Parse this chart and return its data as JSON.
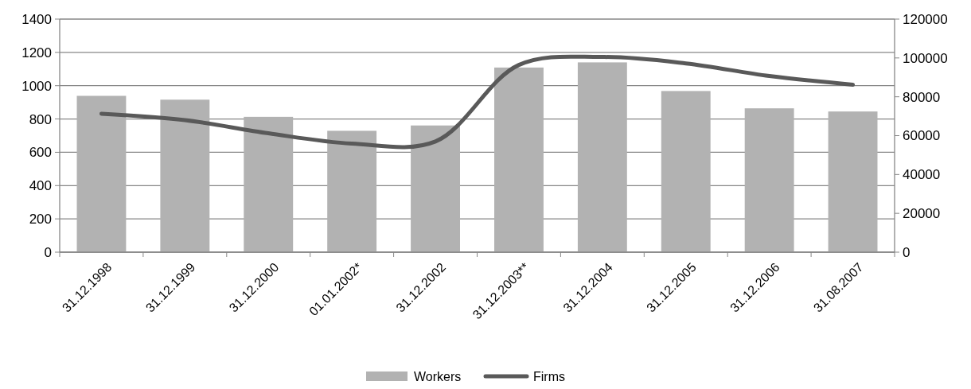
{
  "chart_data": {
    "type": "bar",
    "categories": [
      "31.12.1998",
      "31.12.1999",
      "31.12.2000",
      "01.01.2002*",
      "31.12.2002",
      "31.12.2003**",
      "31.12.2004",
      "31.12.2005",
      "31.12.2006",
      "31.08.2007"
    ],
    "series": [
      {
        "name": "Workers",
        "color": "#b2b2b2",
        "values": [
          939,
          916,
          813,
          729,
          761,
          1109,
          1140,
          968,
          864,
          845
        ]
      },
      {
        "name": "Firms",
        "type": "line",
        "axis": "y2",
        "color": "#595959",
        "values": [
          71300,
          68000,
          61200,
          55900,
          57000,
          96400,
          100500,
          97200,
          90700,
          86200
        ]
      }
    ],
    "ylim": [
      0,
      1400
    ],
    "yticks": [
      0,
      200,
      400,
      600,
      800,
      1000,
      1200,
      1400
    ],
    "y2lim": [
      0,
      120000
    ],
    "y2ticks": [
      0,
      20000,
      40000,
      60000,
      80000,
      100000,
      120000
    ],
    "grid": "y",
    "legend": "bottom",
    "marker": "none",
    "line_style": "solid"
  }
}
